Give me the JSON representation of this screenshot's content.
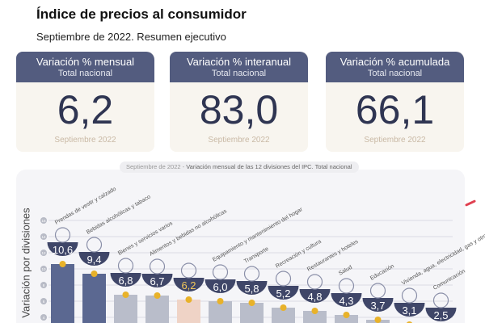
{
  "header": {
    "title": "Índice de precios al consumidor",
    "subtitle": "Septiembre de 2022. Resumen ejecutivo"
  },
  "cards": [
    {
      "title": "Variación % mensual",
      "scope": "Total nacional",
      "value": "6,2",
      "period": "Septiembre 2022"
    },
    {
      "title": "Variación % interanual",
      "scope": "Total nacional",
      "value": "83,0",
      "period": "Septiembre 2022"
    },
    {
      "title": "Variación % acumulada",
      "scope": "Total nacional",
      "value": "66,1",
      "period": "Septiembre 2022"
    }
  ],
  "chart_data": {
    "type": "bar",
    "title_period": "Septiembre de 2022",
    "title": "Variación mensual de las 12 divisiones del IPC. Total nacional",
    "ylabel": "Variación por divisiones",
    "yticks": [
      4,
      6,
      8,
      10,
      12,
      14,
      16
    ],
    "ylim": [
      0,
      16
    ],
    "grid": true,
    "categories": [
      "Prendas de vestir y calzado",
      "Bebidas alcohólicas y tabaco",
      "Bienes y servicios varios",
      "Alimentos y bebidas no alcohólicas",
      "",
      "Equipamiento y mantenimiento del hogar",
      "Transporte",
      "Recreación y cultura",
      "Restaurantes y hoteles",
      "Salud",
      "Educación",
      "Vivienda, agua, electricidad, gas y otros combustibles",
      "Comunicación"
    ],
    "values": [
      10.6,
      9.4,
      6.8,
      6.7,
      6.2,
      6.0,
      5.8,
      5.2,
      4.8,
      4.3,
      3.7,
      3.1,
      2.5
    ],
    "value_labels": [
      "10,6",
      "9,4",
      "6,8",
      "6,7",
      "6,2",
      "6,0",
      "5,8",
      "5,2",
      "4,8",
      "4,3",
      "3,7",
      "3,1",
      "2,5"
    ],
    "colors": {
      "top": "#5b6891",
      "other": "#b9bdca",
      "total": "#efd3c6",
      "badge": "#3f4668",
      "dot": "#e8b22a",
      "total_label": "#f0c75a"
    }
  }
}
